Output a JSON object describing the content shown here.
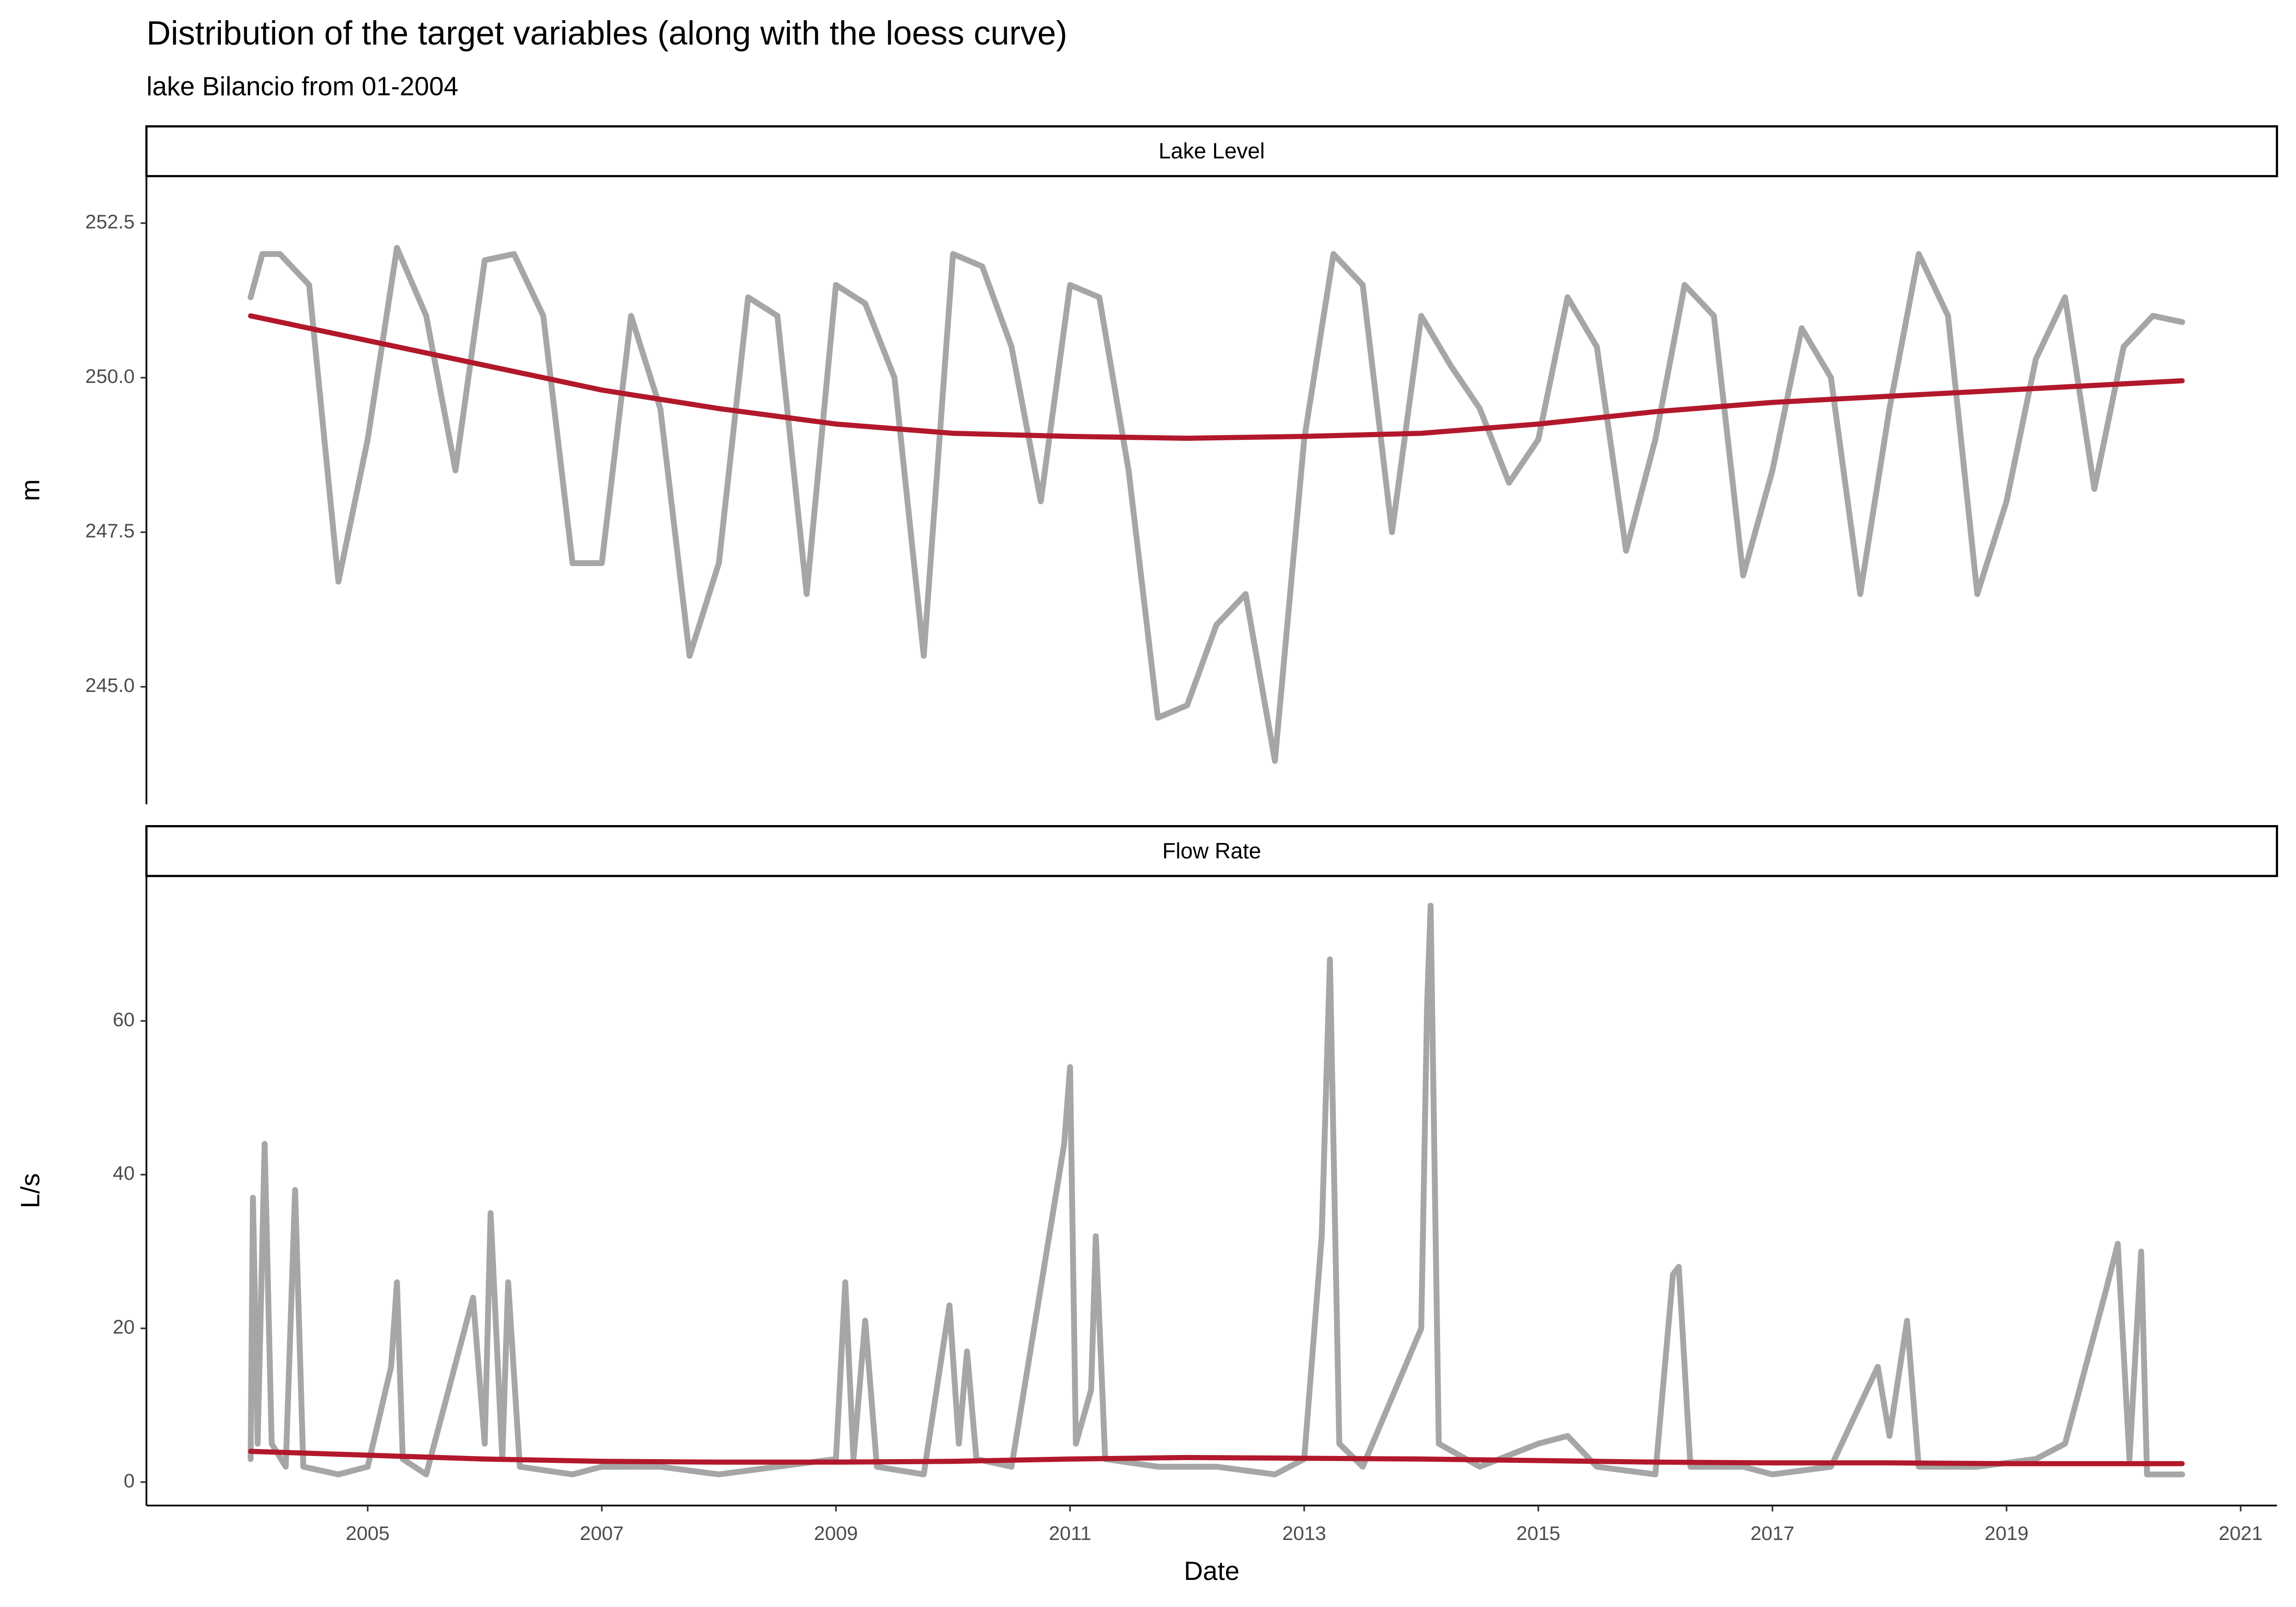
{
  "chart_data": [
    {
      "type": "line",
      "title": "Distribution of the target variables (along with the loess curve)",
      "subtitle": "lake Bilancio from 01-2004",
      "strip": "Lake Level",
      "ylabel": "m",
      "xlim": [
        2003.11,
        2021.31
      ],
      "ylim": [
        243.1,
        253.26
      ],
      "yticks": [
        {
          "value": 245,
          "label": "245.0"
        },
        247.5,
        {
          "value": 250,
          "label": "250.0"
        },
        252.5
      ],
      "series": [
        {
          "color": "#a6a6a6",
          "x": [
            2004.0,
            2004.1,
            2004.25,
            2004.5,
            2004.75,
            2005.0,
            2005.25,
            2005.5,
            2005.75,
            2006.0,
            2006.25,
            2006.5,
            2006.75,
            2007.0,
            2007.25,
            2007.5,
            2007.75,
            2008.0,
            2008.25,
            2008.5,
            2008.75,
            2009.0,
            2009.25,
            2009.5,
            2009.75,
            2010.0,
            2010.25,
            2010.5,
            2010.75,
            2011.0,
            2011.25,
            2011.5,
            2011.75,
            2012.0,
            2012.25,
            2012.5,
            2012.75,
            2013.0,
            2013.25,
            2013.5,
            2013.75,
            2014.0,
            2014.25,
            2014.5,
            2014.75,
            2015.0,
            2015.25,
            2015.5,
            2015.75,
            2016.0,
            2016.25,
            2016.5,
            2016.75,
            2017.0,
            2017.25,
            2017.5,
            2017.75,
            2018.0,
            2018.25,
            2018.5,
            2018.75,
            2019.0,
            2019.25,
            2019.5,
            2019.75,
            2020.0,
            2020.25,
            2020.5
          ],
          "values": [
            251.3,
            252.0,
            252.0,
            251.5,
            246.7,
            249.0,
            252.1,
            251.0,
            248.5,
            251.9,
            252.0,
            251.0,
            247.0,
            247.0,
            251.0,
            249.5,
            245.5,
            247.0,
            251.3,
            251.0,
            246.5,
            251.5,
            251.2,
            250.0,
            245.5,
            252.0,
            251.8,
            250.5,
            248.0,
            251.5,
            251.3,
            248.5,
            244.5,
            244.7,
            246.0,
            246.5,
            243.8,
            249.0,
            252.0,
            251.5,
            247.5,
            251.0,
            250.2,
            249.5,
            248.3,
            249.0,
            251.3,
            250.5,
            247.2,
            249.0,
            251.5,
            251.0,
            246.8,
            248.5,
            250.8,
            250.0,
            246.5,
            249.5,
            252.0,
            251.0,
            246.5,
            248.0,
            250.3,
            251.3,
            248.2,
            250.5,
            251.0,
            250.9
          ]
        },
        {
          "color": "#b2182b",
          "x": [
            2004,
            2005,
            2006,
            2007,
            2008,
            2009,
            2010,
            2011,
            2012,
            2013,
            2014,
            2015,
            2016,
            2017,
            2018,
            2019,
            2020,
            2020.5
          ],
          "values": [
            251.0,
            250.6,
            250.2,
            249.8,
            249.5,
            249.25,
            249.1,
            249.05,
            249.02,
            249.05,
            249.1,
            249.25,
            249.45,
            249.6,
            249.7,
            249.8,
            249.9,
            249.95
          ]
        }
      ]
    },
    {
      "type": "line",
      "strip": "Flow Rate",
      "ylabel": "L/s",
      "xlabel": "Date",
      "xlim": [
        2003.11,
        2021.31
      ],
      "ylim": [
        -3.05,
        78.86
      ],
      "xticks": [
        2005,
        2007,
        2009,
        2011,
        2013,
        2015,
        2017,
        2019,
        2021
      ],
      "yticks": [
        0,
        20,
        40,
        60
      ],
      "series": [
        {
          "color": "#a6a6a6",
          "x": [
            2004.0,
            2004.02,
            2004.06,
            2004.12,
            2004.18,
            2004.3,
            2004.38,
            2004.45,
            2004.75,
            2005.0,
            2005.2,
            2005.25,
            2005.3,
            2005.5,
            2005.9,
            2006.0,
            2006.05,
            2006.15,
            2006.2,
            2006.3,
            2006.75,
            2007.0,
            2007.5,
            2008.0,
            2008.5,
            2009.0,
            2009.08,
            2009.15,
            2009.25,
            2009.35,
            2009.75,
            2009.97,
            2010.05,
            2010.12,
            2010.2,
            2010.5,
            2010.95,
            2011.0,
            2011.05,
            2011.18,
            2011.22,
            2011.3,
            2011.75,
            2012.25,
            2012.75,
            2013.0,
            2013.15,
            2013.22,
            2013.3,
            2013.5,
            2014.0,
            2014.05,
            2014.08,
            2014.15,
            2014.5,
            2015.0,
            2015.25,
            2015.5,
            2016.0,
            2016.15,
            2016.2,
            2016.3,
            2016.75,
            2017.0,
            2017.5,
            2017.9,
            2018.0,
            2018.15,
            2018.25,
            2018.75,
            2019.25,
            2019.5,
            2019.85,
            2019.95,
            2020.05,
            2020.15,
            2020.2,
            2020.5
          ],
          "values": [
            3,
            37,
            5,
            44,
            5,
            2,
            38,
            2,
            1,
            2,
            15,
            26,
            3,
            1,
            24,
            5,
            35,
            3,
            26,
            2,
            1,
            2,
            2,
            1,
            2,
            3,
            26,
            3,
            21,
            2,
            1,
            23,
            5,
            17,
            3,
            2,
            44,
            54,
            5,
            12,
            32,
            3,
            2,
            2,
            1,
            3,
            32,
            68,
            5,
            2,
            20,
            62,
            75,
            5,
            2,
            5,
            6,
            2,
            1,
            27,
            28,
            2,
            2,
            1,
            2,
            15,
            6,
            21,
            2,
            2,
            3,
            5,
            25,
            31,
            3,
            30,
            1,
            1
          ]
        },
        {
          "color": "#b2182b",
          "x": [
            2004,
            2005,
            2006,
            2007,
            2008,
            2009,
            2010,
            2011,
            2012,
            2013,
            2014,
            2015,
            2016,
            2017,
            2018,
            2019,
            2020.5
          ],
          "values": [
            4.0,
            3.5,
            3.0,
            2.7,
            2.6,
            2.6,
            2.7,
            3.0,
            3.2,
            3.1,
            3.0,
            2.8,
            2.6,
            2.5,
            2.5,
            2.4,
            2.4
          ]
        }
      ]
    }
  ]
}
